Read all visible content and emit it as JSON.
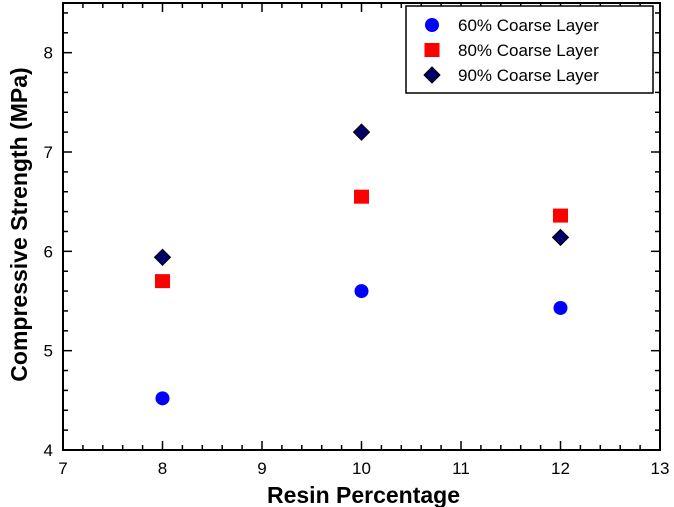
{
  "chart_data": {
    "type": "scatter",
    "xlabel": "Resin Percentage",
    "ylabel": "Compressive Strength (MPa)",
    "xlim": [
      7,
      13
    ],
    "ylim": [
      4,
      8.5
    ],
    "xticks": [
      7,
      8,
      9,
      10,
      11,
      12,
      13
    ],
    "yticks": [
      4,
      5,
      6,
      7,
      8
    ],
    "grid": false,
    "legend_position": "top-right",
    "series": [
      {
        "name": "60% Coarse Layer",
        "marker": "circle",
        "color": "#0000ff",
        "x": [
          8,
          10,
          12
        ],
        "y": [
          4.52,
          5.6,
          5.43
        ]
      },
      {
        "name": "80% Coarse Layer",
        "marker": "square",
        "color": "#ff0000",
        "x": [
          8,
          10,
          12
        ],
        "y": [
          5.7,
          6.55,
          6.36
        ]
      },
      {
        "name": "90% Coarse Layer",
        "marker": "diamond",
        "color": "#000066",
        "x": [
          8,
          10,
          12
        ],
        "y": [
          5.94,
          7.2,
          6.14
        ]
      }
    ]
  }
}
